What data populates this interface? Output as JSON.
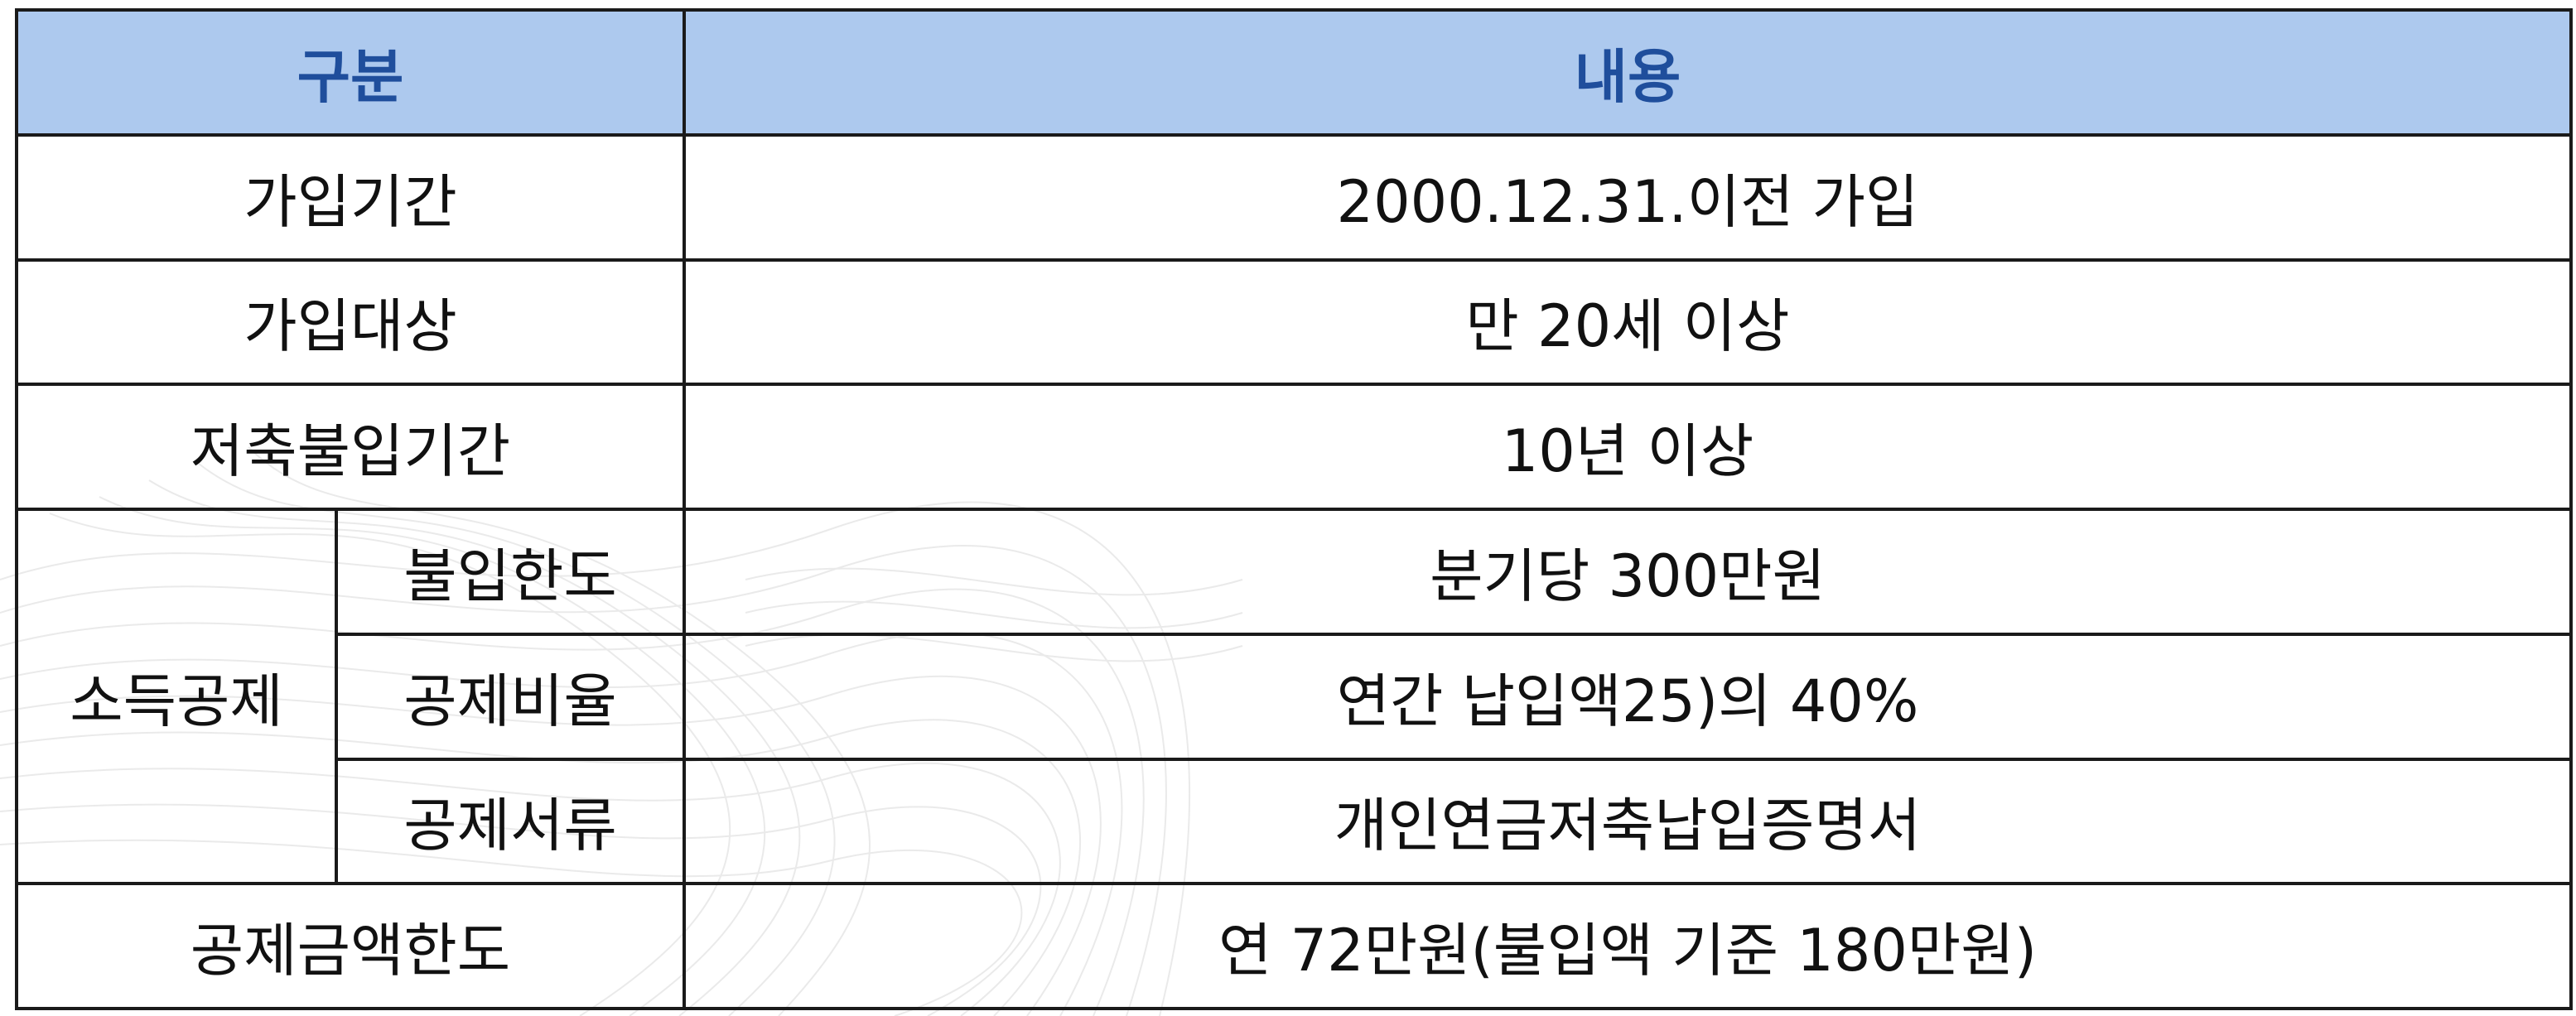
{
  "table": {
    "header": {
      "category": "구분",
      "content": "내용"
    },
    "rows": [
      {
        "label": "가입기간",
        "value": "2000.12.31.이전 가입"
      },
      {
        "label": "가입대상",
        "value": "만 20세 이상"
      },
      {
        "label": "저축불입기간",
        "value": "10년 이상"
      }
    ],
    "group": {
      "label": "소득공제",
      "subrows": [
        {
          "label": "불입한도",
          "value": "분기당 300만원"
        },
        {
          "label": "공제비율",
          "value": "연간 납입액25)의 40%"
        },
        {
          "label": "공제서류",
          "value": "개인연금저축납입증명서"
        }
      ]
    },
    "last_row": {
      "label": "공제금액한도",
      "value": "연 72만원(불입액 기준 180만원)"
    }
  },
  "colors": {
    "header_bg": "#adc9ee",
    "header_text": "#1f4e9c",
    "border": "#1a1a1a"
  }
}
